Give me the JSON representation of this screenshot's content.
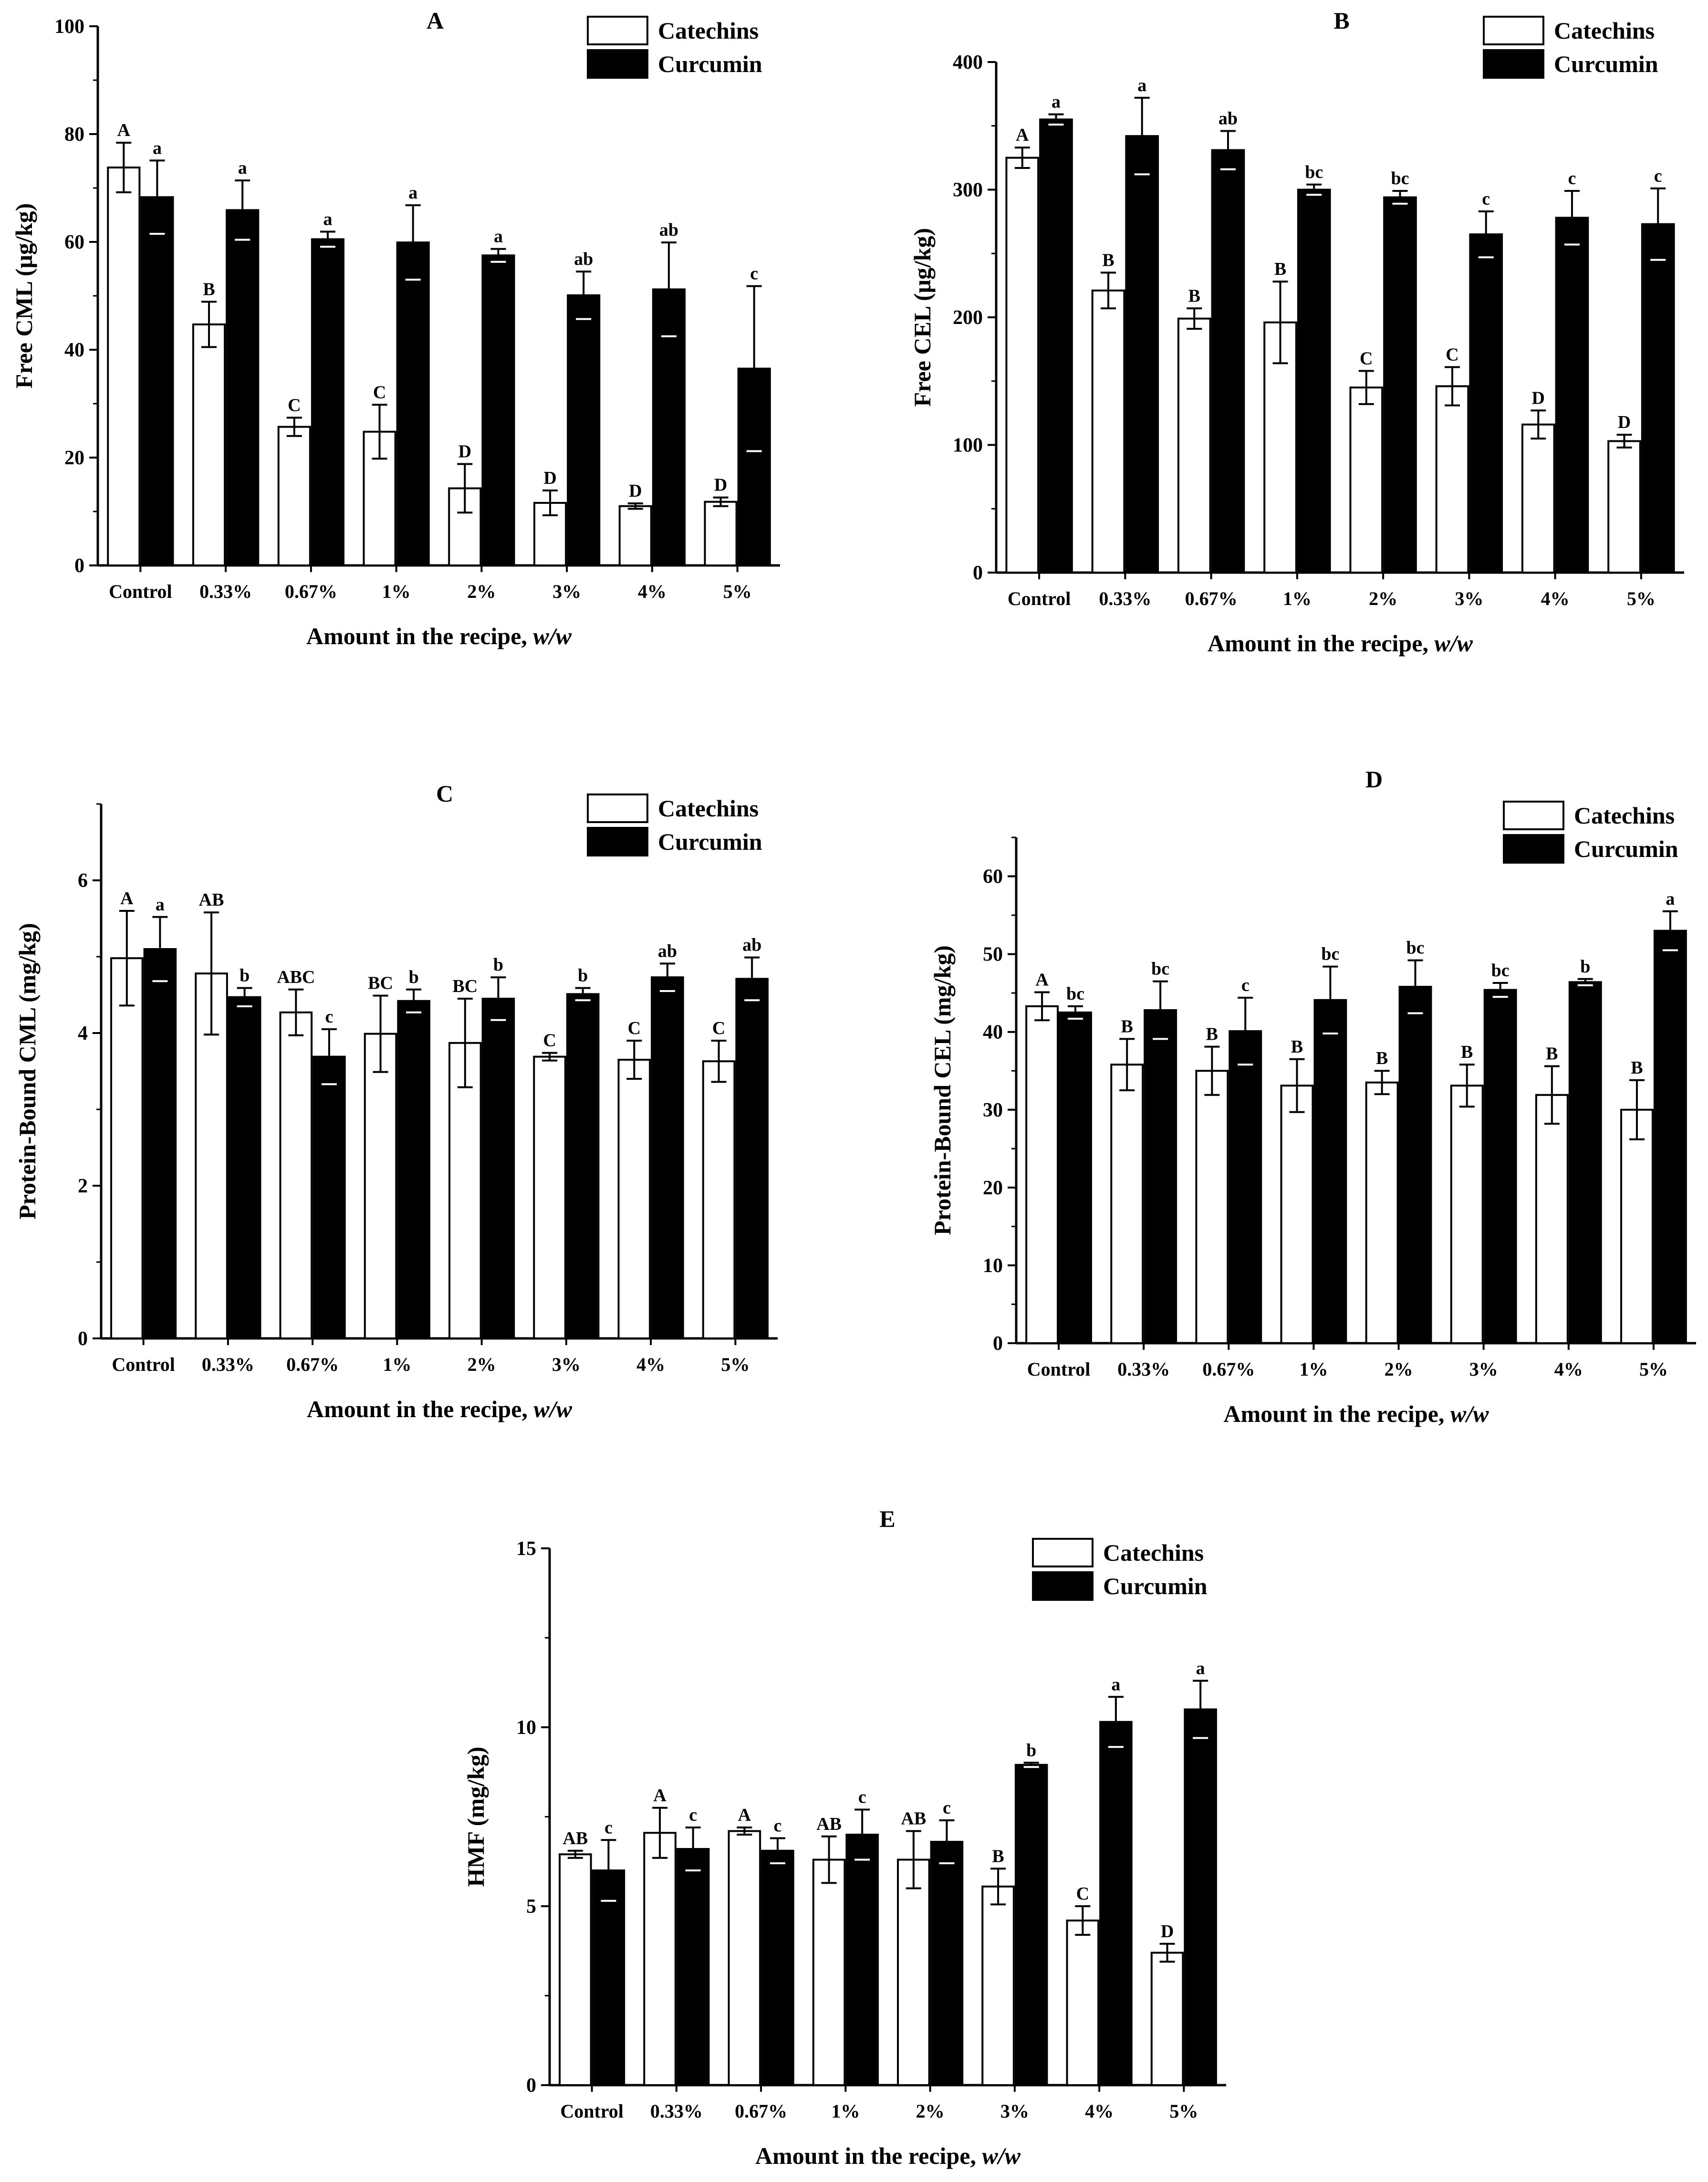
{
  "figure": {
    "categories": [
      "Control",
      "0.33%",
      "0.67%",
      "1%",
      "2%",
      "3%",
      "4%",
      "5%"
    ],
    "x_label": "Amount in the recipe, ",
    "x_label_italic": "w/w",
    "series_names": [
      "Catechins",
      "Curcumin"
    ],
    "colors": {
      "catechins_fill": "#ffffff",
      "curcumin_fill": "#000000",
      "stroke": "#000000"
    }
  },
  "chart_data": [
    {
      "type": "bar",
      "panel": "A",
      "ylabel": "Free CML (μg/kg)",
      "xlabel": "Amount in the recipe, w/w",
      "ylim": [
        0,
        100
      ],
      "yticks": [
        0,
        20,
        40,
        60,
        80,
        100
      ],
      "categories": [
        "Control",
        "0.33%",
        "0.67%",
        "1%",
        "2%",
        "3%",
        "4%",
        "5%"
      ],
      "series": [
        {
          "name": "Catechins",
          "values": [
            73.8,
            44.7,
            25.7,
            24.8,
            14.3,
            11.6,
            11.0,
            11.8
          ],
          "errors": [
            4.6,
            4.2,
            1.7,
            5.0,
            4.5,
            2.3,
            0.5,
            0.8
          ],
          "letters": [
            "A",
            "B",
            "C",
            "C",
            "D",
            "D",
            "D",
            "D"
          ]
        },
        {
          "name": "Curcumin",
          "values": [
            68.3,
            65.9,
            60.5,
            59.9,
            57.5,
            50.1,
            51.2,
            36.5
          ],
          "errors": [
            6.8,
            5.5,
            1.4,
            6.9,
            1.2,
            4.4,
            8.7,
            15.3
          ],
          "letters": [
            "a",
            "a",
            "a",
            "a",
            "a",
            "ab",
            "ab",
            "c"
          ]
        }
      ]
    },
    {
      "type": "bar",
      "panel": "B",
      "ylabel": "Free CEL (μg/kg)",
      "xlabel": "Amount in the recipe, w/w",
      "ylim": [
        0,
        400
      ],
      "yticks": [
        0,
        100,
        200,
        300,
        400
      ],
      "categories": [
        "Control",
        "0.33%",
        "0.67%",
        "1%",
        "2%",
        "3%",
        "4%",
        "5%"
      ],
      "series": [
        {
          "name": "Catechins",
          "values": [
            325,
            221,
            199,
            196,
            145,
            146,
            116,
            103
          ],
          "errors": [
            8,
            14,
            8,
            32,
            13,
            15,
            11,
            5
          ],
          "letters": [
            "A",
            "B",
            "B",
            "B",
            "C",
            "C",
            "D",
            "D"
          ]
        },
        {
          "name": "Curcumin",
          "values": [
            355,
            342,
            331,
            300,
            294,
            265,
            278,
            273
          ],
          "errors": [
            4,
            30,
            15,
            4,
            5,
            18,
            21,
            28
          ],
          "letters": [
            "a",
            "a",
            "ab",
            "bc",
            "bc",
            "c",
            "c",
            "c"
          ]
        }
      ]
    },
    {
      "type": "bar",
      "panel": "C",
      "ylabel": "Protein-Bound CML (mg/kg)",
      "xlabel": "Amount in the recipe, w/w",
      "ylim": [
        0,
        7
      ],
      "yticks": [
        0,
        2,
        4,
        6
      ],
      "categories": [
        "Control",
        "0.33%",
        "0.67%",
        "1%",
        "2%",
        "3%",
        "4%",
        "5%"
      ],
      "series": [
        {
          "name": "Catechins",
          "values": [
            4.98,
            4.78,
            4.27,
            3.99,
            3.87,
            3.69,
            3.65,
            3.63
          ],
          "errors": [
            0.62,
            0.8,
            0.3,
            0.5,
            0.58,
            0.05,
            0.25,
            0.27
          ],
          "letters": [
            "A",
            "AB",
            "ABC",
            "BC",
            "BC",
            "C",
            "C",
            "C"
          ]
        },
        {
          "name": "Curcumin",
          "values": [
            5.1,
            4.47,
            3.69,
            4.42,
            4.45,
            4.51,
            4.73,
            4.71
          ],
          "errors": [
            0.42,
            0.12,
            0.36,
            0.15,
            0.28,
            0.08,
            0.18,
            0.28
          ],
          "letters": [
            "a",
            "b",
            "c",
            "b",
            "b",
            "b",
            "ab",
            "ab"
          ]
        }
      ]
    },
    {
      "type": "bar",
      "panel": "D",
      "ylabel": "Protein-Bound CEL (mg/kg)",
      "xlabel": "Amount in the recipe, w/w",
      "ylim": [
        0,
        65
      ],
      "yticks": [
        0,
        10,
        20,
        30,
        40,
        50,
        60
      ],
      "categories": [
        "Control",
        "0.33%",
        "0.67%",
        "1%",
        "2%",
        "3%",
        "4%",
        "5%"
      ],
      "series": [
        {
          "name": "Catechins",
          "values": [
            43.3,
            35.8,
            35.0,
            33.1,
            33.5,
            33.1,
            31.9,
            30.0
          ],
          "errors": [
            1.8,
            3.3,
            3.1,
            3.4,
            1.5,
            2.7,
            3.7,
            3.8
          ],
          "letters": [
            "A",
            "B",
            "B",
            "B",
            "B",
            "B",
            "B",
            "B"
          ]
        },
        {
          "name": "Curcumin",
          "values": [
            42.5,
            42.8,
            40.1,
            44.1,
            45.8,
            45.4,
            46.4,
            53.0
          ],
          "errors": [
            0.8,
            3.7,
            4.3,
            4.3,
            3.4,
            0.9,
            0.4,
            2.5
          ],
          "letters": [
            "bc",
            "bc",
            "c",
            "bc",
            "bc",
            "bc",
            "b",
            "a"
          ]
        }
      ]
    },
    {
      "type": "bar",
      "panel": "E",
      "ylabel": "HMF (mg/kg)",
      "xlabel": "Amount in the recipe, w/w",
      "ylim": [
        0,
        15
      ],
      "yticks": [
        0,
        5,
        10,
        15
      ],
      "categories": [
        "Control",
        "0.33%",
        "0.67%",
        "1%",
        "2%",
        "3%",
        "4%",
        "5%"
      ],
      "series": [
        {
          "name": "Catechins",
          "values": [
            6.45,
            7.05,
            7.1,
            6.3,
            6.3,
            5.55,
            4.6,
            3.7
          ],
          "errors": [
            0.1,
            0.7,
            0.1,
            0.65,
            0.8,
            0.5,
            0.4,
            0.25
          ],
          "letters": [
            "AB",
            "A",
            "A",
            "AB",
            "AB",
            "B",
            "C",
            "D"
          ]
        },
        {
          "name": "Curcumin",
          "values": [
            6.0,
            6.6,
            6.55,
            7.0,
            6.8,
            8.95,
            10.15,
            10.5
          ],
          "errors": [
            0.85,
            0.6,
            0.35,
            0.7,
            0.6,
            0.06,
            0.7,
            0.8
          ],
          "letters": [
            "c",
            "c",
            "c",
            "c",
            "c",
            "b",
            "a",
            "a"
          ]
        }
      ]
    }
  ]
}
